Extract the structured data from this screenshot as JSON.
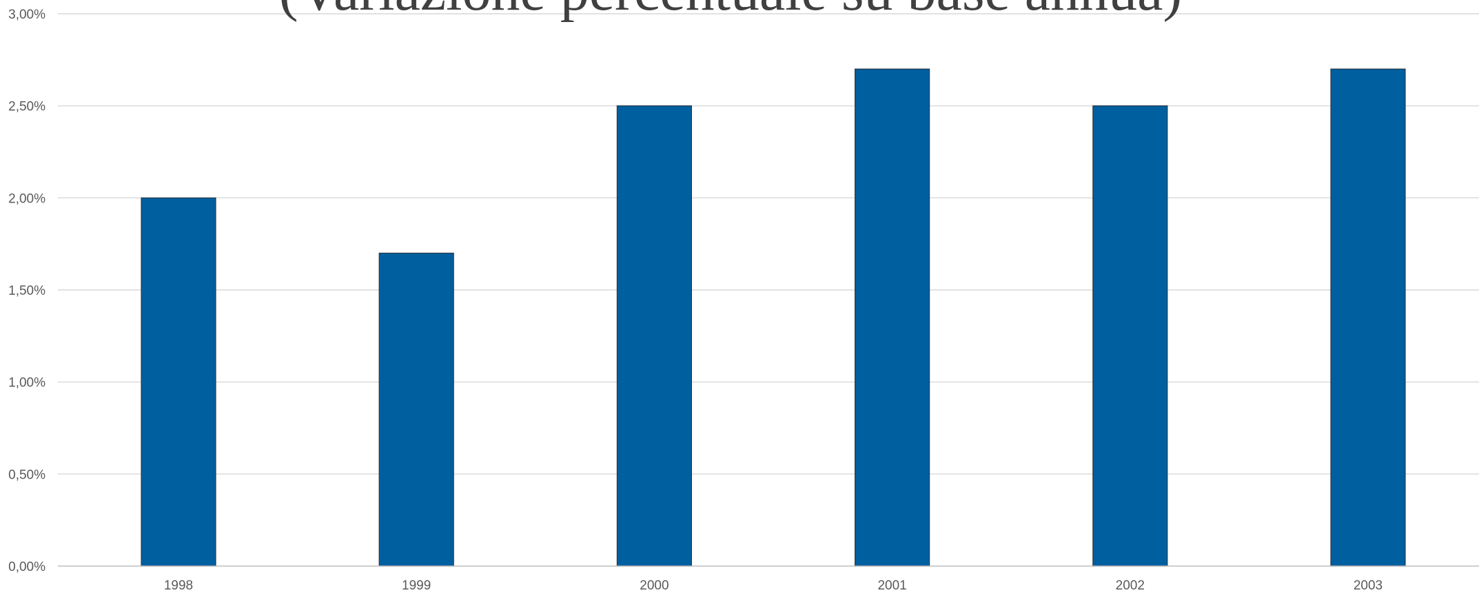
{
  "chart_data": {
    "type": "bar",
    "title": "(Variazione percentuale su base annua)",
    "xlabel": "",
    "ylabel": "",
    "categories": [
      "1998",
      "1999",
      "2000",
      "2001",
      "2002",
      "2003"
    ],
    "values": [
      2.0,
      1.7,
      2.5,
      2.7,
      2.5,
      2.7
    ],
    "ylim": [
      0,
      3
    ],
    "yticks": [
      0,
      0.5,
      1.0,
      1.5,
      2.0,
      2.5,
      3.0
    ],
    "ytick_labels": [
      "0,00%",
      "0,50%",
      "1,00%",
      "1,50%",
      "2,00%",
      "2,50%",
      "3,00%"
    ],
    "grid": true,
    "legend": "none",
    "colors": {
      "bar_fill": "#005F9E",
      "bar_stroke": "#2B3A46",
      "gridline": "#D9D9D9",
      "axis_line": "#BFBFBF",
      "tick_text": "#595959",
      "title_text": "#404040"
    }
  }
}
